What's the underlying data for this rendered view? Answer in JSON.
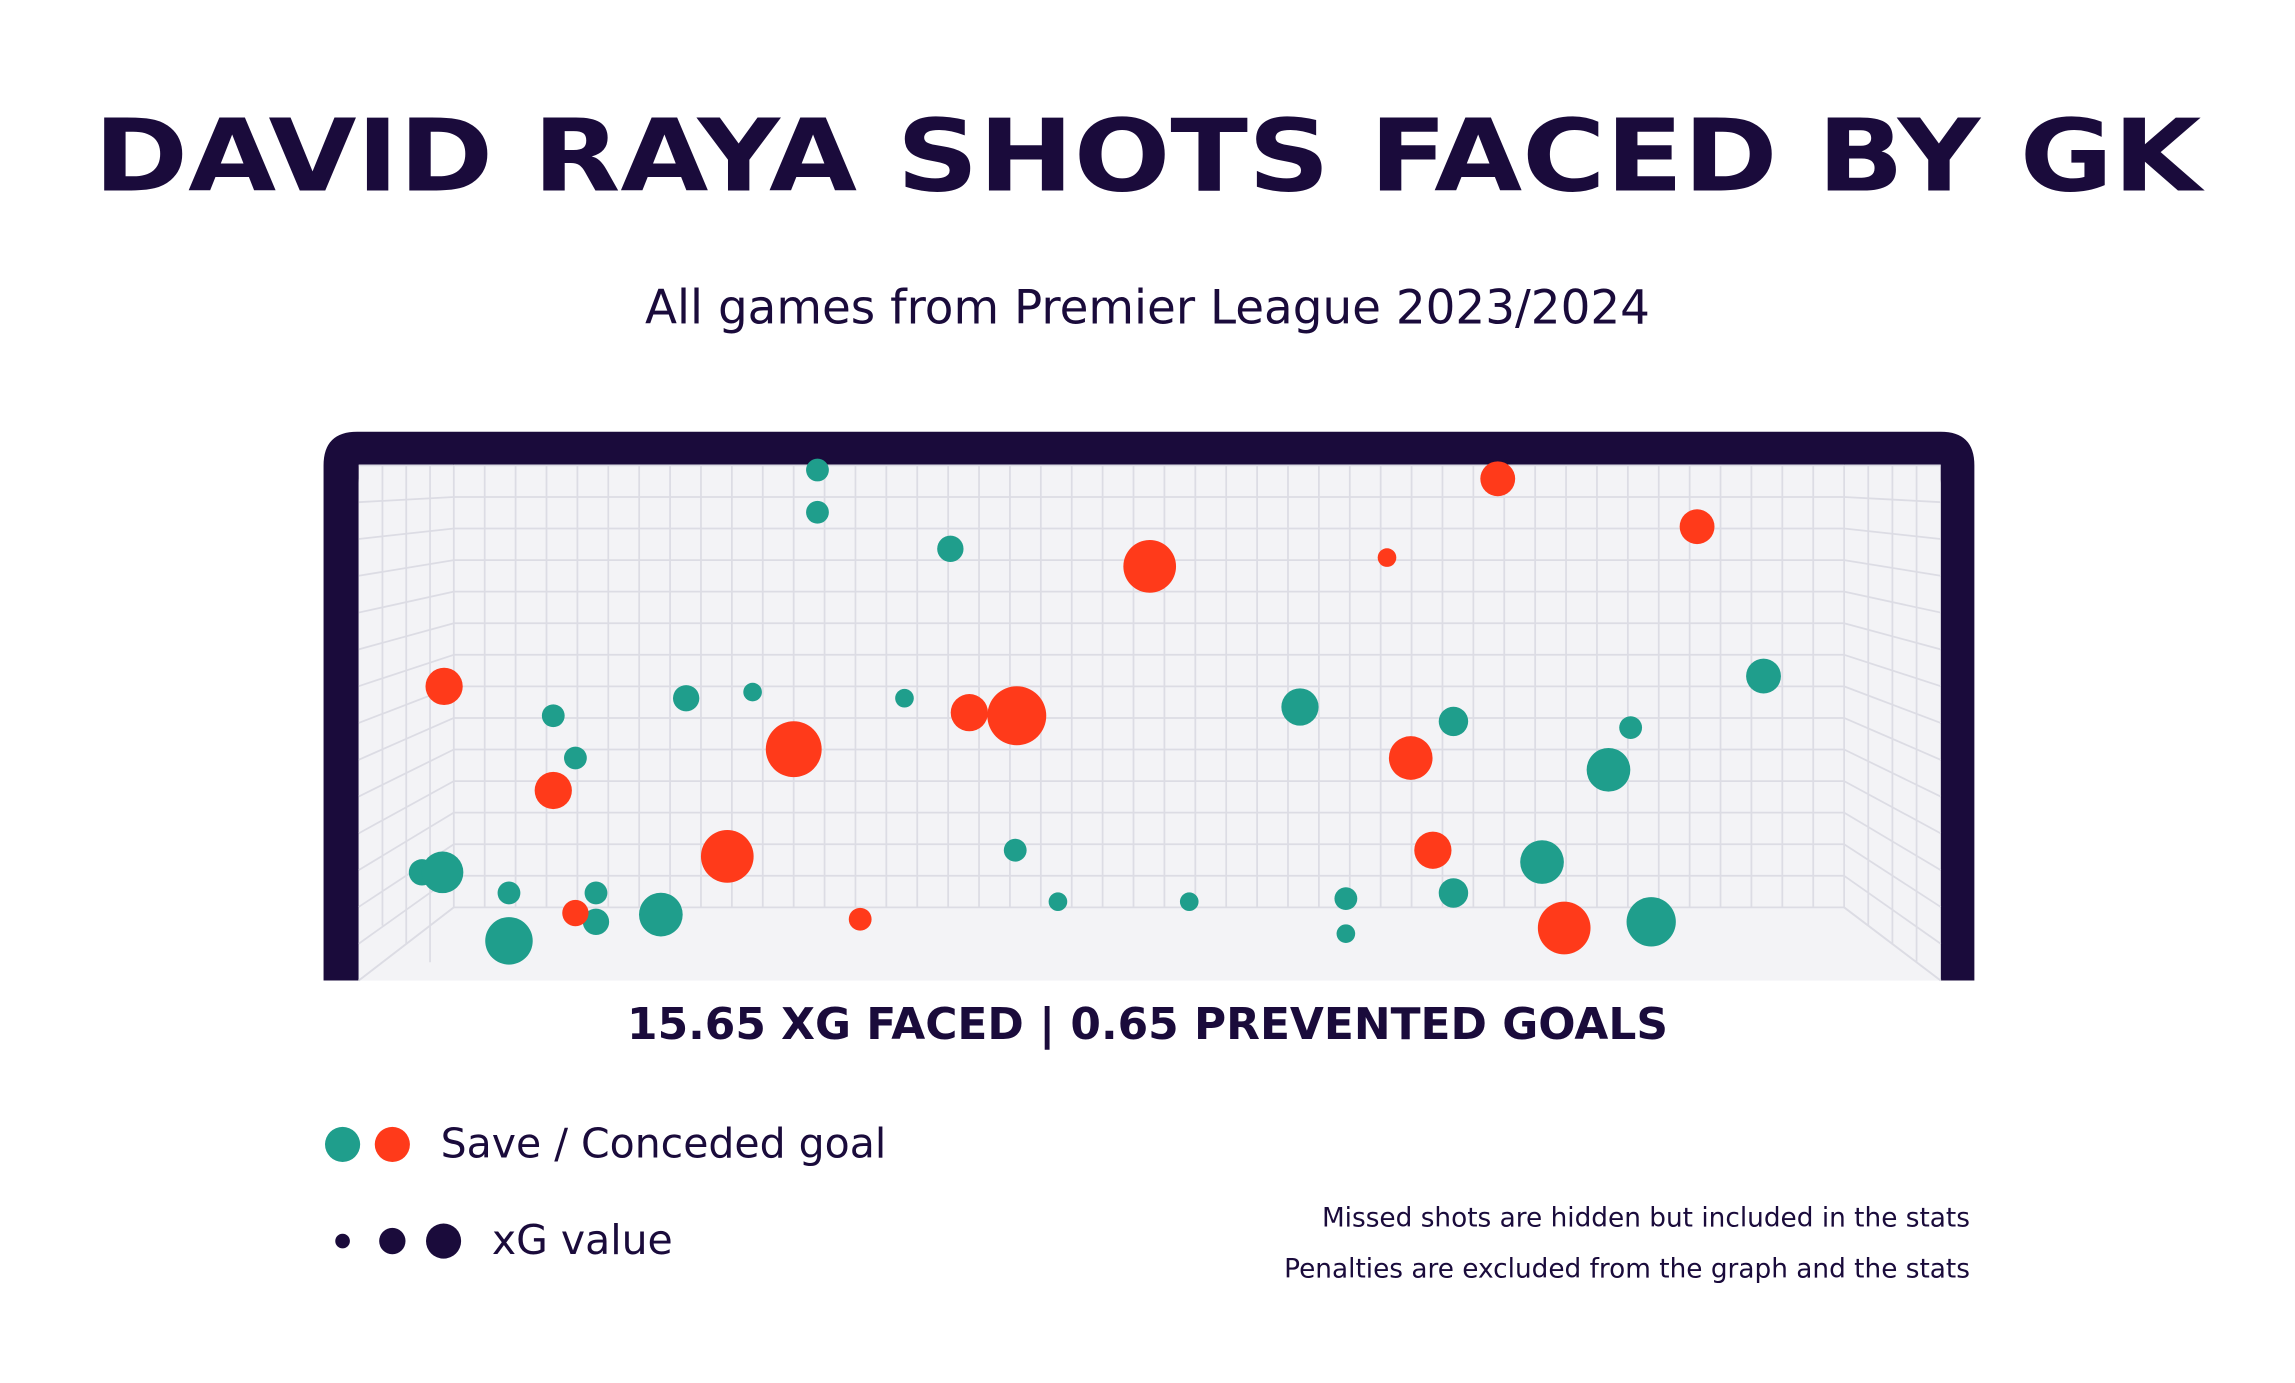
{
  "chart_data": {
    "type": "scatter",
    "title": "DAVID RAYA SHOTS FACED BY GK",
    "subtitle": "All games from Premier League 2023/2024",
    "summary": "15.65 XG FACED | 0.65 PREVENTED GOALS",
    "legend": {
      "outcome": "Save / Conceded goal",
      "size": "xG value"
    },
    "notes": [
      "Missed shots are hidden but included in the stats",
      "Penalties are excluded from the graph and the stats"
    ],
    "xlim": [
      0,
      100
    ],
    "ylim": [
      0,
      100
    ],
    "series": [
      {
        "color": "#1f9e8c",
        "x": [
          29.0,
          29.0,
          37.4,
          12.3,
          20.7,
          24.9,
          34.5,
          13.7,
          4.0,
          5.3,
          9.5,
          15.0,
          15.0,
          9.5,
          19.1,
          41.5,
          44.2,
          52.5,
          59.5,
          62.4,
          62.4,
          69.2,
          69.2,
          74.8,
          79.0,
          80.4,
          81.7,
          88.8
        ],
        "y": [
          99.1,
          90.9,
          83.8,
          51.4,
          54.8,
          56.0,
          54.8,
          43.2,
          21.0,
          21.0,
          17.0,
          17.0,
          11.4,
          7.7,
          12.8,
          25.3,
          15.3,
          15.3,
          53.1,
          15.9,
          9.1,
          50.3,
          17.0,
          23.0,
          40.9,
          49.1,
          11.4,
          59.1
        ],
        "xg": [
          0.03,
          0.03,
          0.04,
          0.03,
          0.04,
          0.02,
          0.02,
          0.03,
          0.04,
          0.1,
          0.03,
          0.03,
          0.04,
          0.13,
          0.11,
          0.03,
          0.02,
          0.02,
          0.08,
          0.03,
          0.02,
          0.05,
          0.05,
          0.11,
          0.11,
          0.03,
          0.14,
          0.07
        ]
      },
      {
        "color": "#ff3a1a",
        "x": [
          72.0,
          84.6,
          50.0,
          65.0,
          5.4,
          12.3,
          27.5,
          38.6,
          41.6,
          66.5,
          67.9,
          23.3,
          13.7,
          31.7,
          76.2
        ],
        "y": [
          97.4,
          88.1,
          80.4,
          82.1,
          57.1,
          36.9,
          44.9,
          52.0,
          51.4,
          43.2,
          25.3,
          24.1,
          13.1,
          11.9,
          10.2
        ],
        "xg": [
          0.07,
          0.07,
          0.16,
          0.02,
          0.08,
          0.08,
          0.18,
          0.08,
          0.2,
          0.11,
          0.08,
          0.16,
          0.04,
          0.03,
          0.16
        ]
      }
    ]
  }
}
